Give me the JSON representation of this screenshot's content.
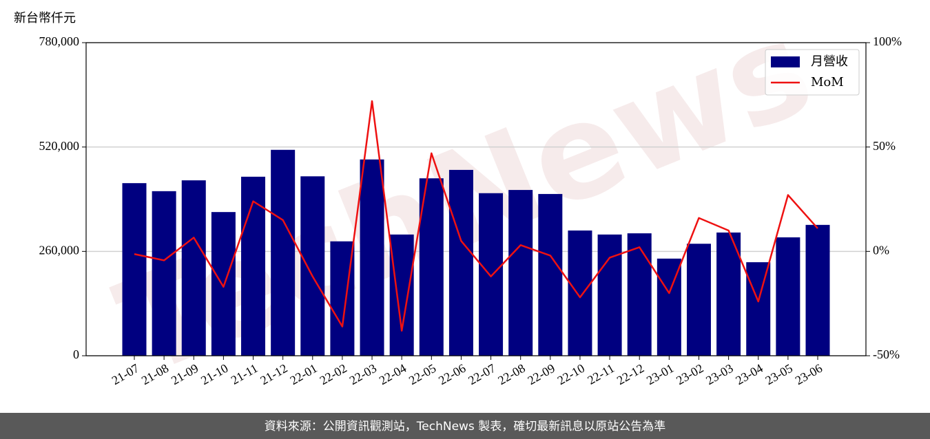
{
  "chart_data": {
    "type": "bar",
    "unit_label": "新台幣仟元",
    "watermark": "TechNews",
    "footer": "資料來源：公開資訊觀測站，TechNews 製表，確切最新訊息以原站公告為準",
    "categories": [
      "21-07",
      "21-08",
      "21-09",
      "21-10",
      "21-11",
      "21-12",
      "22-01",
      "22-02",
      "22-03",
      "22-04",
      "22-05",
      "22-06",
      "22-07",
      "22-08",
      "22-09",
      "22-10",
      "22-11",
      "22-12",
      "23-01",
      "23-02",
      "23-03",
      "23-04",
      "23-05",
      "23-06"
    ],
    "series": [
      {
        "name": "月營收",
        "color": "#000080",
        "type": "bar",
        "values": [
          430000,
          410000,
          437000,
          358000,
          446000,
          513000,
          447000,
          285000,
          489000,
          302000,
          442000,
          463000,
          405000,
          413000,
          403000,
          312000,
          302000,
          305000,
          242000,
          279000,
          307000,
          233000,
          295000,
          326000
        ]
      },
      {
        "name": "MoM",
        "color": "#ee1111",
        "type": "line",
        "axis": "y2",
        "values": [
          -1.3,
          -4.3,
          6.6,
          -17,
          24,
          15,
          -12,
          -36,
          72,
          -38,
          47,
          5,
          -12,
          3,
          -2,
          -22,
          -3,
          2,
          -20,
          16,
          10,
          -24,
          27,
          11
        ]
      }
    ],
    "ylim": [
      0,
      780000
    ],
    "yticks": [
      0,
      {
        "value": 260000,
        "label": "260,000"
      },
      {
        "value": 520000,
        "label": "520,000"
      },
      {
        "value": 780000,
        "label": "780,000"
      }
    ],
    "y2lim": [
      -50,
      100
    ],
    "y2ticks": [
      {
        "value": -50,
        "label": "-50%"
      },
      {
        "value": 0,
        "label": "0%"
      },
      {
        "value": 50,
        "label": "50%"
      },
      {
        "value": 100,
        "label": "100%"
      }
    ],
    "grid": true,
    "legend": "upper right"
  }
}
